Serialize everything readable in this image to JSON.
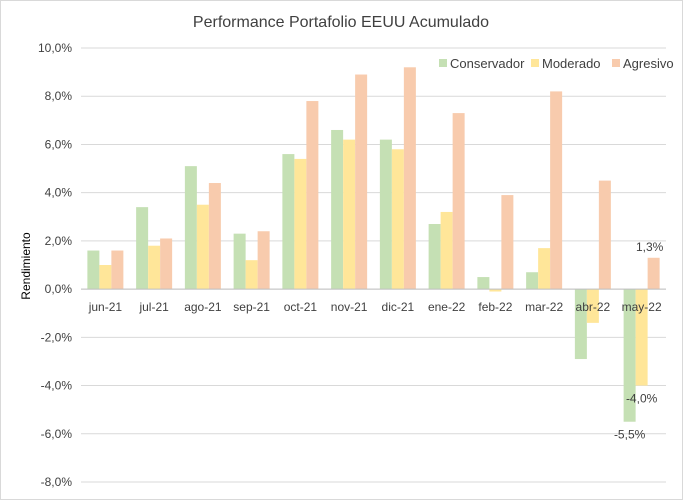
{
  "chart_data": {
    "type": "bar",
    "title": "Performance Portafolio EEUU Acumulado",
    "xlabel": "",
    "ylabel": "Rendimiento",
    "categories": [
      "jun-21",
      "jul-21",
      "ago-21",
      "sep-21",
      "oct-21",
      "nov-21",
      "dic-21",
      "ene-22",
      "feb-22",
      "mar-22",
      "abr-22",
      "may-22"
    ],
    "series": [
      {
        "name": "Conservador",
        "color": "#c5e0b4",
        "values": [
          1.6,
          3.4,
          5.1,
          2.3,
          5.6,
          6.6,
          6.2,
          2.7,
          0.5,
          0.7,
          -2.9,
          -5.5
        ]
      },
      {
        "name": "Moderado",
        "color": "#ffe699",
        "values": [
          1.0,
          1.8,
          3.5,
          1.2,
          5.4,
          6.2,
          5.8,
          3.2,
          -0.1,
          1.7,
          -1.4,
          -4.0
        ]
      },
      {
        "name": "Agresivo",
        "color": "#f8cbad",
        "values": [
          1.6,
          2.1,
          4.4,
          2.4,
          7.8,
          8.9,
          9.2,
          7.3,
          3.9,
          8.2,
          4.5,
          1.3
        ]
      }
    ],
    "ylim": [
      -8,
      10
    ],
    "y_ticks": [
      "-8,0%",
      "-6,0%",
      "-4,0%",
      "-2,0%",
      "0,0%",
      "2,0%",
      "4,0%",
      "6,0%",
      "8,0%",
      "10,0%"
    ],
    "grid": true,
    "legend_position": "top-right",
    "data_labels": [
      {
        "series": 2,
        "category": 11,
        "text": "1,3%"
      },
      {
        "series": 1,
        "category": 11,
        "text": "-4,0%"
      },
      {
        "series": 0,
        "category": 11,
        "text": "-5,5%"
      }
    ]
  }
}
